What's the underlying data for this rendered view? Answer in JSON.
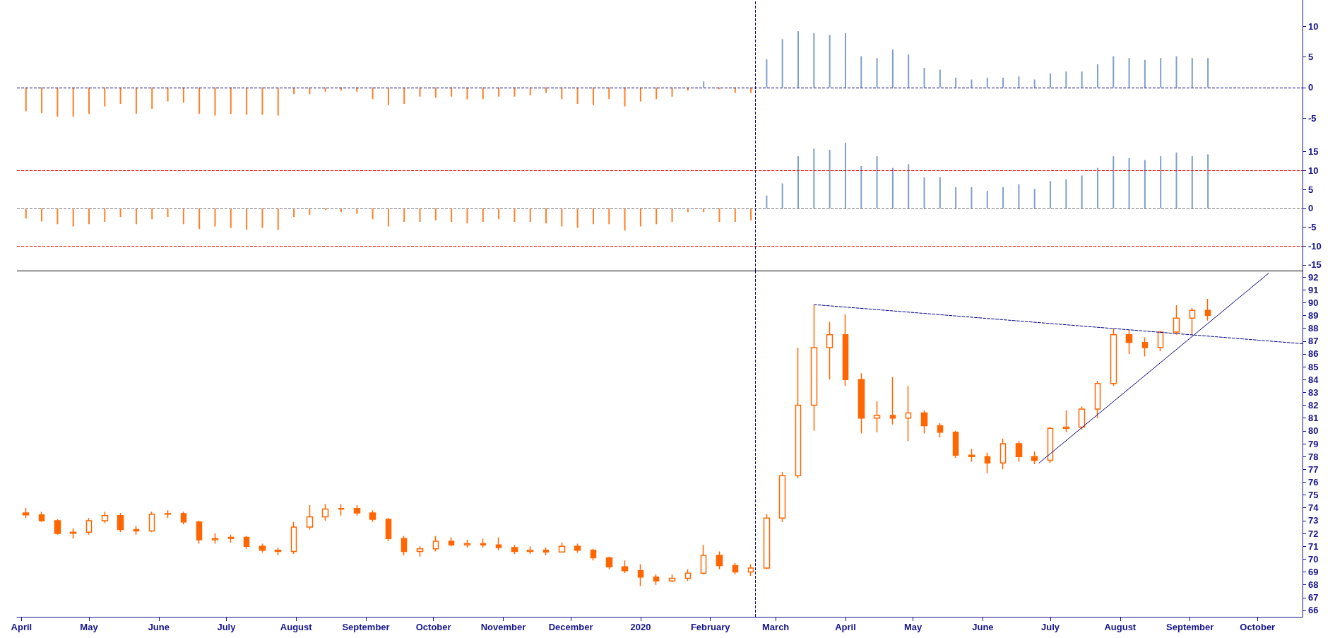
{
  "chart_data": [
    {
      "type": "bar",
      "tick_labels": "y",
      "x": [
        "2019-04-03",
        "2019-04-10",
        "2019-04-17",
        "2019-04-24",
        "2019-05-01",
        "2019-05-08",
        "2019-05-15",
        "2019-05-22",
        "2019-05-29",
        "2019-06-05",
        "2019-06-12",
        "2019-06-19",
        "2019-06-26",
        "2019-07-03",
        "2019-07-10",
        "2019-07-17",
        "2019-07-24",
        "2019-07-31",
        "2019-08-07",
        "2019-08-14",
        "2019-08-21",
        "2019-08-28",
        "2019-09-04",
        "2019-09-11",
        "2019-09-18",
        "2019-09-25",
        "2019-10-02",
        "2019-10-09",
        "2019-10-16",
        "2019-10-23",
        "2019-10-30",
        "2019-11-06",
        "2019-11-13",
        "2019-11-20",
        "2019-11-27",
        "2019-12-04",
        "2019-12-11",
        "2019-12-18",
        "2019-12-25",
        "2020-01-01",
        "2020-01-08",
        "2020-01-15",
        "2020-01-22",
        "2020-01-29",
        "2020-02-05",
        "2020-02-12",
        "2020-02-19",
        "2020-02-26",
        "2020-03-04",
        "2020-03-11",
        "2020-03-18",
        "2020-03-25",
        "2020-04-01",
        "2020-04-08",
        "2020-04-15",
        "2020-04-22",
        "2020-04-29",
        "2020-05-06",
        "2020-05-13",
        "2020-05-20",
        "2020-05-27",
        "2020-06-03",
        "2020-06-10",
        "2020-06-17",
        "2020-06-24",
        "2020-07-01",
        "2020-07-08",
        "2020-07-15",
        "2020-07-22",
        "2020-07-29",
        "2020-08-05",
        "2020-08-12",
        "2020-08-19",
        "2020-08-26",
        "2020-09-02",
        "2020-09-09"
      ],
      "values": [
        -3.9,
        -4.2,
        -4.8,
        -4.8,
        -4.3,
        -3.1,
        -2.7,
        -4.3,
        -3.5,
        -2.3,
        -2.5,
        -4.3,
        -4.6,
        -4.3,
        -4.5,
        -4.5,
        -4.6,
        -1.1,
        -1.1,
        -0.7,
        -0.5,
        -0.7,
        -1.9,
        -2.9,
        -2.7,
        -1.5,
        -1.7,
        -1.5,
        -1.9,
        -1.9,
        -1.5,
        -1.5,
        -1.3,
        -0.9,
        -1.9,
        -2.7,
        -2.9,
        -1.9,
        -3.1,
        -2.3,
        -1.9,
        -1.5,
        -0.5,
        1.0,
        -0.3,
        -0.9,
        -0.9,
        4.6,
        7.9,
        9.2,
        8.9,
        8.6,
        8.9,
        5.1,
        4.8,
        6.2,
        5.4,
        3.2,
        2.9,
        1.6,
        1.3,
        1.6,
        1.6,
        1.8,
        1.3,
        2.3,
        2.6,
        2.6,
        3.8,
        5.1,
        4.8,
        4.5,
        4.8,
        5.1,
        4.8,
        4.8
      ],
      "colors": [
        "#ff7f27",
        "#ff7f27",
        "#ff7f27",
        "#ff7f27",
        "#ff7f27",
        "#ff7f27",
        "#ff7f27",
        "#ff7f27",
        "#ff7f27",
        "#ff7f27",
        "#ff7f27",
        "#ff7f27",
        "#ff7f27",
        "#ff7f27",
        "#ff7f27",
        "#ff7f27",
        "#ff7f27",
        "#ff7f27",
        "#ff7f27",
        "#ff7f27",
        "#ff7f27",
        "#ff7f27",
        "#ff7f27",
        "#ff7f27",
        "#ff7f27",
        "#ff7f27",
        "#ff7f27",
        "#ff7f27",
        "#ff7f27",
        "#ff7f27",
        "#ff7f27",
        "#ff7f27",
        "#ff7f27",
        "#ff7f27",
        "#ff7f27",
        "#ff7f27",
        "#ff7f27",
        "#ff7f27",
        "#ff7f27",
        "#ff7f27",
        "#ff7f27",
        "#ff7f27",
        "#ff7f27",
        "#7f9fc8",
        "#ff7f27",
        "#ff7f27",
        "#ff7f27",
        "#7f9fc8",
        "#7f9fc8",
        "#7f9fc8",
        "#7f9fc8",
        "#7f9fc8",
        "#7f9fc8",
        "#7f9fc8",
        "#7f9fc8",
        "#7f9fc8",
        "#7f9fc8",
        "#7f9fc8",
        "#7f9fc8",
        "#7f9fc8",
        "#7f9fc8",
        "#7f9fc8",
        "#7f9fc8",
        "#7f9fc8",
        "#7f9fc8",
        "#7f9fc8",
        "#7f9fc8",
        "#7f9fc8",
        "#7f9fc8",
        "#7f9fc8",
        "#7f9fc8",
        "#7f9fc8",
        "#7f9fc8",
        "#7f9fc8",
        "#7f9fc8",
        "#7f9fc8"
      ],
      "xlim": [
        "2019-03-30",
        "2020-10-21"
      ],
      "ylim": [
        -6.5,
        14.3
      ],
      "yticks": [
        -5,
        0,
        5,
        10
      ],
      "ref_lines": [
        {
          "axis": "y",
          "value": 0,
          "color": "#000080",
          "line_style": "dashed"
        },
        {
          "axis": "x",
          "value": "2020-02-21",
          "color": "#000080",
          "line_style": "dashed"
        }
      ]
    },
    {
      "type": "bar",
      "tick_labels": "y",
      "x": [
        "2019-04-03",
        "2019-04-10",
        "2019-04-17",
        "2019-04-24",
        "2019-05-01",
        "2019-05-08",
        "2019-05-15",
        "2019-05-22",
        "2019-05-29",
        "2019-06-05",
        "2019-06-12",
        "2019-06-19",
        "2019-06-26",
        "2019-07-03",
        "2019-07-10",
        "2019-07-17",
        "2019-07-24",
        "2019-07-31",
        "2019-08-07",
        "2019-08-14",
        "2019-08-21",
        "2019-08-28",
        "2019-09-04",
        "2019-09-11",
        "2019-09-18",
        "2019-09-25",
        "2019-10-02",
        "2019-10-09",
        "2019-10-16",
        "2019-10-23",
        "2019-10-30",
        "2019-11-06",
        "2019-11-13",
        "2019-11-20",
        "2019-11-27",
        "2019-12-04",
        "2019-12-11",
        "2019-12-18",
        "2019-12-25",
        "2020-01-01",
        "2020-01-08",
        "2020-01-15",
        "2020-01-22",
        "2020-01-29",
        "2020-02-05",
        "2020-02-12",
        "2020-02-19",
        "2020-02-26",
        "2020-03-04",
        "2020-03-11",
        "2020-03-18",
        "2020-03-25",
        "2020-04-01",
        "2020-04-08",
        "2020-04-15",
        "2020-04-22",
        "2020-04-29",
        "2020-05-06",
        "2020-05-13",
        "2020-05-20",
        "2020-05-27",
        "2020-06-03",
        "2020-06-10",
        "2020-06-17",
        "2020-06-24",
        "2020-07-01",
        "2020-07-08",
        "2020-07-15",
        "2020-07-22",
        "2020-07-29",
        "2020-08-05",
        "2020-08-12",
        "2020-08-19",
        "2020-08-26",
        "2020-09-02",
        "2020-09-09"
      ],
      "values": [
        -2.7,
        -3.5,
        -4.2,
        -4.8,
        -4.2,
        -3.6,
        -2.3,
        -4.2,
        -2.9,
        -2.3,
        -4.2,
        -5.5,
        -4.8,
        -5.2,
        -5.7,
        -5.2,
        -5.7,
        -2.3,
        -1.7,
        -0.4,
        -1.0,
        -1.5,
        -2.9,
        -4.8,
        -3.6,
        -3.6,
        -3.2,
        -3.6,
        -4.0,
        -3.6,
        -2.9,
        -3.6,
        -3.6,
        -4.0,
        -4.8,
        -5.2,
        -4.2,
        -4.2,
        -5.9,
        -4.8,
        -4.2,
        -3.6,
        -1.0,
        -1.0,
        -3.6,
        -3.6,
        -3.2,
        3.4,
        6.6,
        13.8,
        15.8,
        15.5,
        17.4,
        11.2,
        13.8,
        10.7,
        11.7,
        8.2,
        8.2,
        5.6,
        5.6,
        4.6,
        5.6,
        6.4,
        5.1,
        7.2,
        7.7,
        8.7,
        10.7,
        13.8,
        13.3,
        12.8,
        13.8,
        14.8,
        13.8,
        14.3
      ],
      "colors": [
        "#ff7f27",
        "#ff7f27",
        "#ff7f27",
        "#ff7f27",
        "#ff7f27",
        "#ff7f27",
        "#ff7f27",
        "#ff7f27",
        "#ff7f27",
        "#ff7f27",
        "#ff7f27",
        "#ff7f27",
        "#ff7f27",
        "#ff7f27",
        "#ff7f27",
        "#ff7f27",
        "#ff7f27",
        "#ff7f27",
        "#ff7f27",
        "#ff7f27",
        "#ff7f27",
        "#ff7f27",
        "#ff7f27",
        "#ff7f27",
        "#ff7f27",
        "#ff7f27",
        "#ff7f27",
        "#ff7f27",
        "#ff7f27",
        "#ff7f27",
        "#ff7f27",
        "#ff7f27",
        "#ff7f27",
        "#ff7f27",
        "#ff7f27",
        "#ff7f27",
        "#ff7f27",
        "#ff7f27",
        "#ff7f27",
        "#ff7f27",
        "#ff7f27",
        "#ff7f27",
        "#ff7f27",
        "#ff7f27",
        "#ff7f27",
        "#ff7f27",
        "#ff7f27",
        "#7f9fc8",
        "#7f9fc8",
        "#7f9fc8",
        "#7f9fc8",
        "#7f9fc8",
        "#7f9fc8",
        "#7f9fc8",
        "#7f9fc8",
        "#7f9fc8",
        "#7f9fc8",
        "#7f9fc8",
        "#7f9fc8",
        "#7f9fc8",
        "#7f9fc8",
        "#7f9fc8",
        "#7f9fc8",
        "#7f9fc8",
        "#7f9fc8",
        "#7f9fc8",
        "#7f9fc8",
        "#7f9fc8",
        "#7f9fc8",
        "#7f9fc8",
        "#7f9fc8",
        "#7f9fc8",
        "#7f9fc8",
        "#7f9fc8",
        "#7f9fc8",
        "#7f9fc8"
      ],
      "xlim": [
        "2019-03-30",
        "2020-10-21"
      ],
      "ylim": [
        -16.5,
        21.5
      ],
      "yticks": [
        -15,
        -10,
        -5,
        0,
        5,
        10,
        15
      ],
      "ref_lines": [
        {
          "axis": "y",
          "value": 0,
          "color": "#808080",
          "line_style": "dashed"
        },
        {
          "axis": "y",
          "value": 10,
          "color": "#ff0000",
          "line_style": "dashed"
        },
        {
          "axis": "y",
          "value": -10,
          "color": "#ff0000",
          "line_style": "dashed"
        },
        {
          "axis": "x",
          "value": "2020-02-21",
          "color": "#000080",
          "line_style": "dashed"
        }
      ]
    },
    {
      "type": "candlestick",
      "x": [
        "2019-04-03",
        "2019-04-10",
        "2019-04-17",
        "2019-04-24",
        "2019-05-01",
        "2019-05-08",
        "2019-05-15",
        "2019-05-22",
        "2019-05-29",
        "2019-06-05",
        "2019-06-12",
        "2019-06-19",
        "2019-06-26",
        "2019-07-03",
        "2019-07-10",
        "2019-07-17",
        "2019-07-24",
        "2019-07-31",
        "2019-08-07",
        "2019-08-14",
        "2019-08-21",
        "2019-08-28",
        "2019-09-04",
        "2019-09-11",
        "2019-09-18",
        "2019-09-25",
        "2019-10-02",
        "2019-10-09",
        "2019-10-16",
        "2019-10-23",
        "2019-10-30",
        "2019-11-06",
        "2019-11-13",
        "2019-11-20",
        "2019-11-27",
        "2019-12-04",
        "2019-12-11",
        "2019-12-18",
        "2019-12-25",
        "2020-01-01",
        "2020-01-08",
        "2020-01-15",
        "2020-01-22",
        "2020-01-29",
        "2020-02-05",
        "2020-02-12",
        "2020-02-19",
        "2020-02-26",
        "2020-03-04",
        "2020-03-11",
        "2020-03-18",
        "2020-03-25",
        "2020-04-01",
        "2020-04-08",
        "2020-04-15",
        "2020-04-22",
        "2020-04-29",
        "2020-05-06",
        "2020-05-13",
        "2020-05-20",
        "2020-05-27",
        "2020-06-03",
        "2020-06-10",
        "2020-06-17",
        "2020-06-24",
        "2020-07-01",
        "2020-07-08",
        "2020-07-15",
        "2020-07-22",
        "2020-07-29",
        "2020-08-05",
        "2020-08-12",
        "2020-08-19",
        "2020-08-26",
        "2020-09-02",
        "2020-09-09"
      ],
      "series": [
        {
          "type": "candlestick",
          "color": "#ff6600",
          "ohlc": [
            [
              73.6,
              74.0,
              73.2,
              73.45
            ],
            [
              73.45,
              73.7,
              72.9,
              73.0
            ],
            [
              73.0,
              73.1,
              71.9,
              72.0
            ],
            [
              72.0,
              72.4,
              71.6,
              72.1
            ],
            [
              72.1,
              73.2,
              71.9,
              73.0
            ],
            [
              73.0,
              73.7,
              72.8,
              73.4
            ],
            [
              73.4,
              73.6,
              72.1,
              72.3
            ],
            [
              72.3,
              72.6,
              71.9,
              72.2
            ],
            [
              72.2,
              73.7,
              72.1,
              73.5
            ],
            [
              73.5,
              73.8,
              73.2,
              73.55
            ],
            [
              73.55,
              73.7,
              72.7,
              72.9
            ],
            [
              72.9,
              73.0,
              71.2,
              71.5
            ],
            [
              71.5,
              72.0,
              71.2,
              71.6
            ],
            [
              71.6,
              71.9,
              71.3,
              71.7
            ],
            [
              71.7,
              71.8,
              70.8,
              71.0
            ],
            [
              71.0,
              71.2,
              70.5,
              70.7
            ],
            [
              70.7,
              70.9,
              70.3,
              70.6
            ],
            [
              70.6,
              72.9,
              70.4,
              72.5
            ],
            [
              72.5,
              74.2,
              72.3,
              73.3
            ],
            [
              73.3,
              74.3,
              73.0,
              73.9
            ],
            [
              73.9,
              74.3,
              73.4,
              73.95
            ],
            [
              73.95,
              74.2,
              73.4,
              73.6
            ],
            [
              73.6,
              73.8,
              72.9,
              73.1
            ],
            [
              73.1,
              73.2,
              71.4,
              71.6
            ],
            [
              71.6,
              71.8,
              70.3,
              70.6
            ],
            [
              70.6,
              71.0,
              70.2,
              70.8
            ],
            [
              70.8,
              71.8,
              70.6,
              71.4
            ],
            [
              71.4,
              71.7,
              71.0,
              71.1
            ],
            [
              71.1,
              71.5,
              70.9,
              71.2
            ],
            [
              71.2,
              71.6,
              70.9,
              71.1
            ],
            [
              71.1,
              71.7,
              70.7,
              70.9
            ],
            [
              70.9,
              71.1,
              70.4,
              70.6
            ],
            [
              70.6,
              71.0,
              70.4,
              70.7
            ],
            [
              70.7,
              70.9,
              70.3,
              70.55
            ],
            [
              70.55,
              71.3,
              70.5,
              71.0
            ],
            [
              71.0,
              71.2,
              70.5,
              70.7
            ],
            [
              70.7,
              70.8,
              69.9,
              70.1
            ],
            [
              70.1,
              70.2,
              69.2,
              69.4
            ],
            [
              69.4,
              69.9,
              68.9,
              69.1
            ],
            [
              69.1,
              69.6,
              67.9,
              68.6
            ],
            [
              68.6,
              68.8,
              68.0,
              68.3
            ],
            [
              68.3,
              68.8,
              68.2,
              68.5
            ],
            [
              68.5,
              69.2,
              68.3,
              68.9
            ],
            [
              68.9,
              71.1,
              68.8,
              70.3
            ],
            [
              70.3,
              70.6,
              69.2,
              69.5
            ],
            [
              69.5,
              69.7,
              68.8,
              69.0
            ],
            [
              69.0,
              69.6,
              68.7,
              69.3
            ],
            [
              69.3,
              73.5,
              69.2,
              73.2
            ],
            [
              73.2,
              76.8,
              72.9,
              76.5
            ],
            [
              76.5,
              86.5,
              76.3,
              82.0
            ],
            [
              82.0,
              89.8,
              80.0,
              86.5
            ],
            [
              86.5,
              88.5,
              84.0,
              87.5
            ],
            [
              87.5,
              89.1,
              83.5,
              84.0
            ],
            [
              84.0,
              84.5,
              79.8,
              81.0
            ],
            [
              81.0,
              82.3,
              79.9,
              81.2
            ],
            [
              81.2,
              84.2,
              80.5,
              81.0
            ],
            [
              81.0,
              83.5,
              79.2,
              81.4
            ],
            [
              81.4,
              81.6,
              79.8,
              80.4
            ],
            [
              80.4,
              80.6,
              79.5,
              79.9
            ],
            [
              79.9,
              80.0,
              77.9,
              78.1
            ],
            [
              78.1,
              78.6,
              77.6,
              78.0
            ],
            [
              78.0,
              78.3,
              76.7,
              77.5
            ],
            [
              77.5,
              79.4,
              77.0,
              79.0
            ],
            [
              79.0,
              79.2,
              77.6,
              78.0
            ],
            [
              78.0,
              78.4,
              77.4,
              77.7
            ],
            [
              77.7,
              80.3,
              77.5,
              80.2
            ],
            [
              80.2,
              81.6,
              79.9,
              80.3
            ],
            [
              80.3,
              81.9,
              80.1,
              81.7
            ],
            [
              81.7,
              83.9,
              81.0,
              83.7
            ],
            [
              83.7,
              88.0,
              83.5,
              87.5
            ],
            [
              87.5,
              87.9,
              86.0,
              86.9
            ],
            [
              86.9,
              87.3,
              85.8,
              86.5
            ],
            [
              86.5,
              87.8,
              86.2,
              87.7
            ],
            [
              87.7,
              89.8,
              87.5,
              88.8
            ],
            [
              88.8,
              89.6,
              87.5,
              89.4
            ],
            [
              89.4,
              90.3,
              88.6,
              89.0
            ]
          ]
        },
        {
          "type": "line",
          "color": "#000080",
          "line_style": "dashed",
          "x": [
            "2020-03-18",
            "2020-10-21"
          ],
          "values": [
            89.85,
            86.8
          ]
        },
        {
          "type": "line",
          "color": "#000080",
          "line_style": "solid",
          "x": [
            "2020-06-26",
            "2020-10-06"
          ],
          "values": [
            77.5,
            92.3
          ]
        }
      ],
      "xlim": [
        "2019-03-30",
        "2020-10-21"
      ],
      "xticks": [
        {
          "value": "2019-04-01",
          "label": "April"
        },
        {
          "value": "2019-05-01",
          "label": "May"
        },
        {
          "value": "2019-06-01",
          "label": "June"
        },
        {
          "value": "2019-07-01",
          "label": "July"
        },
        {
          "value": "2019-08-01",
          "label": "August"
        },
        {
          "value": "2019-09-01",
          "label": "September"
        },
        {
          "value": "2019-10-01",
          "label": "October"
        },
        {
          "value": "2019-11-01",
          "label": "November"
        },
        {
          "value": "2019-12-01",
          "label": "December"
        },
        {
          "value": "2020-01-01",
          "label": "2020"
        },
        {
          "value": "2020-02-01",
          "label": "February"
        },
        {
          "value": "2020-03-01",
          "label": "March"
        },
        {
          "value": "2020-04-01",
          "label": "April"
        },
        {
          "value": "2020-05-01",
          "label": "May"
        },
        {
          "value": "2020-06-01",
          "label": "June"
        },
        {
          "value": "2020-07-01",
          "label": "July"
        },
        {
          "value": "2020-08-01",
          "label": "August"
        },
        {
          "value": "2020-09-01",
          "label": "September"
        },
        {
          "value": "2020-10-01",
          "label": "October"
        }
      ],
      "ylim": [
        65.5,
        92.5
      ],
      "yticks": [
        66,
        67,
        68,
        69,
        70,
        71,
        72,
        73,
        74,
        75,
        76,
        77,
        78,
        79,
        80,
        81,
        82,
        83,
        84,
        85,
        86,
        87,
        88,
        89,
        90,
        91,
        92
      ],
      "ref_lines": [
        {
          "axis": "x",
          "value": "2020-02-21",
          "color": "#000080",
          "line_style": "dashed"
        }
      ]
    }
  ]
}
